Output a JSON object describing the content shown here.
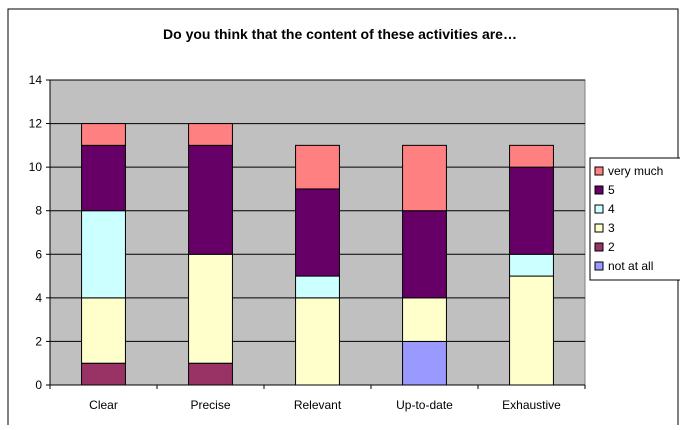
{
  "chart_data": {
    "type": "bar",
    "stacked": true,
    "title": "Do you think that the content of these activities are…",
    "categories": [
      "Clear",
      "Precise",
      "Relevant",
      "Up-to-date",
      "Exhaustive"
    ],
    "series": [
      {
        "name": "not at all",
        "color": "#9999ff",
        "values": [
          0,
          0,
          0,
          2,
          0
        ]
      },
      {
        "name": "2",
        "color": "#993366",
        "values": [
          1,
          1,
          0,
          0,
          0
        ]
      },
      {
        "name": "3",
        "color": "#ffffcc",
        "values": [
          3,
          5,
          4,
          2,
          5
        ]
      },
      {
        "name": "4",
        "color": "#ccffff",
        "values": [
          4,
          0,
          1,
          0,
          1
        ]
      },
      {
        "name": "5",
        "color": "#660066",
        "values": [
          3,
          5,
          4,
          4,
          4
        ]
      },
      {
        "name": "very much",
        "color": "#ff8080",
        "values": [
          1,
          1,
          2,
          3,
          1
        ]
      }
    ],
    "legend_order": [
      "very much",
      "5",
      "4",
      "3",
      "2",
      "not at all"
    ],
    "ylim": [
      0,
      14
    ],
    "yticks": [
      0,
      2,
      4,
      6,
      8,
      10,
      12,
      14
    ],
    "grid": true,
    "legend_position": "right",
    "plot_background": "#c0c0c0"
  }
}
